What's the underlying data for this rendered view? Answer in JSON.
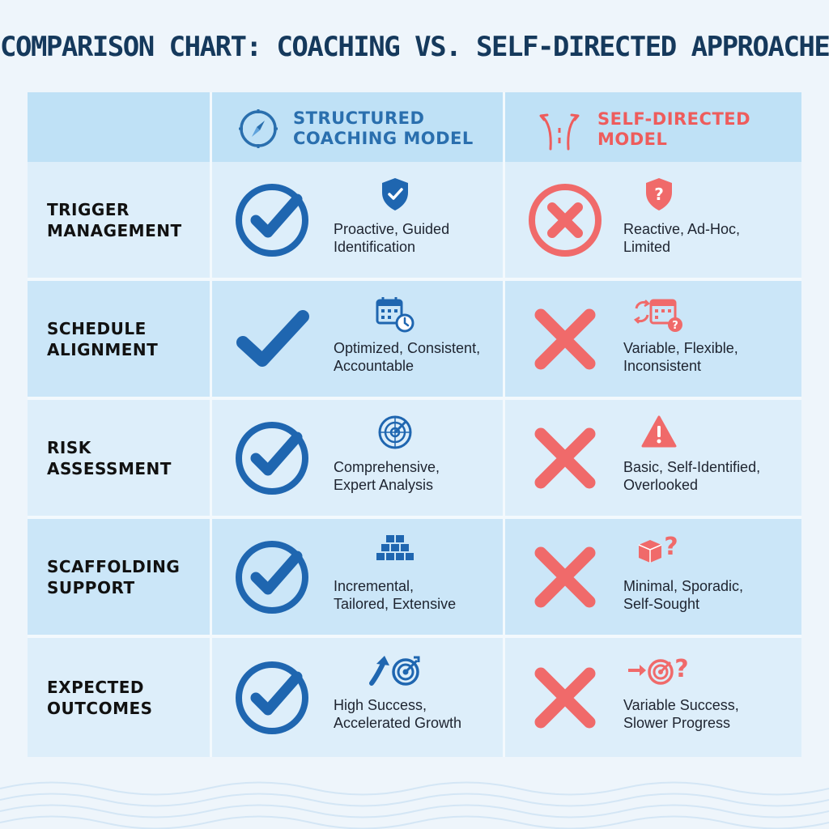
{
  "title": "COMPARISON CHART: COACHING VS. SELF-DIRECTED APPROACHES",
  "colors": {
    "blue": "#1f66b0",
    "red": "#f06a6a",
    "title": "#15395c"
  },
  "headers": {
    "structured": {
      "line1": "STRUCTURED",
      "line2": "COACHING MODEL",
      "icon": "compass-icon"
    },
    "selfdirected": {
      "line1": "SELF-DIRECTED",
      "line2": "MODEL",
      "icon": "diverging-road-icon"
    }
  },
  "rows": [
    {
      "label1": "TRIGGER",
      "label2": "MANAGEMENT",
      "coaching": {
        "mark": "circled-check",
        "icon": "shield-check-icon",
        "line1": "Proactive, Guided",
        "line2": "Identification"
      },
      "self": {
        "mark": "circled-x",
        "icon": "shield-question-icon",
        "line1": "Reactive, Ad-Hoc,",
        "line2": "Limited"
      }
    },
    {
      "label1": "SCHEDULE",
      "label2": "ALIGNMENT",
      "coaching": {
        "mark": "check",
        "icon": "calendar-clock-icon",
        "line1": "Optimized, Consistent,",
        "line2": "Accountable"
      },
      "self": {
        "mark": "x",
        "icon": "calendar-question-icon",
        "line1": "Variable, Flexible,",
        "line2": "Inconsistent"
      }
    },
    {
      "label1": "RISK",
      "label2": "ASSESSMENT",
      "coaching": {
        "mark": "circled-check",
        "icon": "radar-icon",
        "line1": "Comprehensive,",
        "line2": "Expert Analysis"
      },
      "self": {
        "mark": "x",
        "icon": "warning-icon",
        "line1": "Basic, Self-Identified,",
        "line2": "Overlooked"
      }
    },
    {
      "label1": "SCAFFOLDING",
      "label2": "SUPPORT",
      "coaching": {
        "mark": "circled-check",
        "icon": "stacked-blocks-icon",
        "line1": "Incremental,",
        "line2": "Tailored, Extensive"
      },
      "self": {
        "mark": "x",
        "icon": "box-question-icon",
        "line1": "Minimal, Sporadic,",
        "line2": "Self-Sought"
      }
    },
    {
      "label1": "EXPECTED",
      "label2": "OUTCOMES",
      "coaching": {
        "mark": "circled-check",
        "icon": "growth-target-icon",
        "line1": "High Success,",
        "line2": "Accelerated Growth"
      },
      "self": {
        "mark": "x",
        "icon": "target-question-icon",
        "line1": "Variable Success,",
        "line2": "Slower Progress"
      }
    }
  ]
}
